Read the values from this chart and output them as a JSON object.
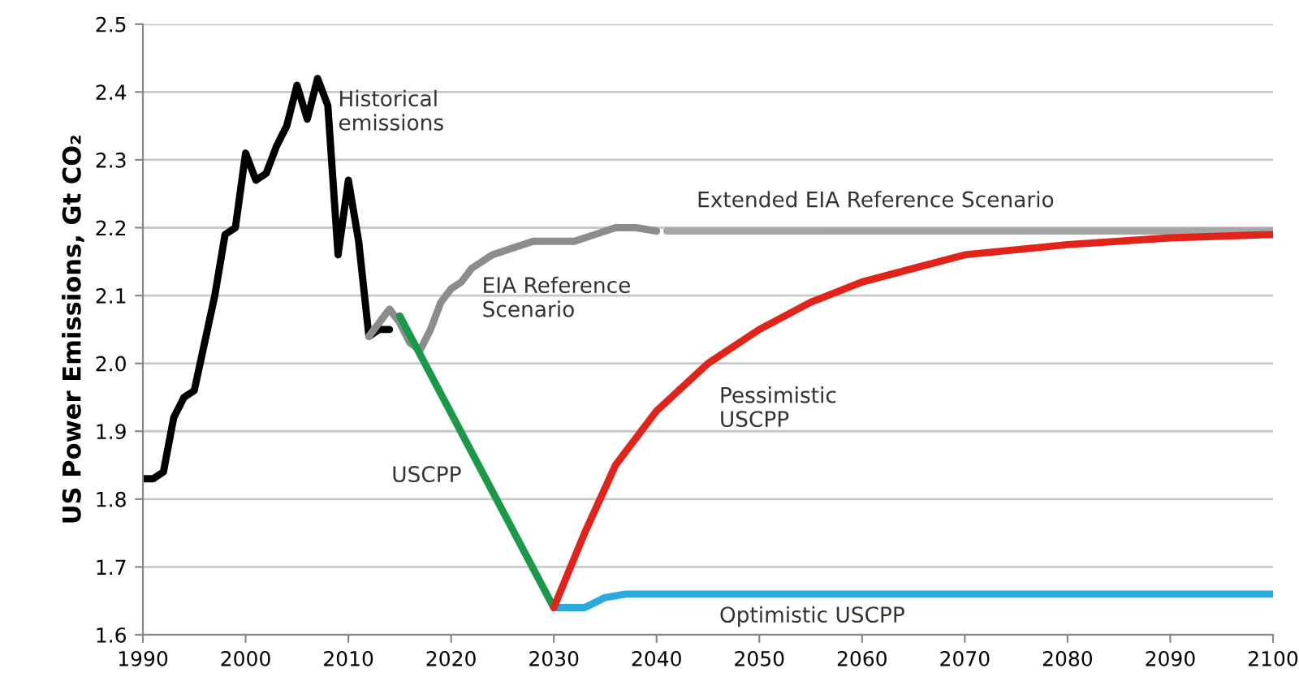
{
  "chart_data": {
    "type": "line",
    "ylabel": "US Power Emissions, Gt CO₂",
    "xlim": [
      1990,
      2100
    ],
    "xticks": [
      1990,
      2000,
      2010,
      2020,
      2030,
      2040,
      2050,
      2060,
      2070,
      2080,
      2090,
      2100
    ],
    "ylim": [
      1.6,
      2.5
    ],
    "yticks": [
      1.6,
      1.7,
      1.8,
      1.9,
      {
        "value": 2,
        "label": "2.0"
      },
      2.1,
      2.2,
      2.3,
      2.4,
      2.5
    ],
    "grid": "y",
    "legend": false,
    "series": [
      {
        "color": "#000000",
        "x": [
          1990,
          1991,
          1992,
          1993,
          1994,
          1995,
          1996,
          1997,
          1998,
          1999,
          2000,
          2001,
          2002,
          2003,
          2004,
          2005,
          2006,
          2007,
          2008,
          2009,
          2010,
          2011,
          2012,
          2013,
          2014
        ],
        "values": [
          1.83,
          1.83,
          1.84,
          1.92,
          1.95,
          1.96,
          2.03,
          2.1,
          2.19,
          2.2,
          2.31,
          2.27,
          2.28,
          2.32,
          2.35,
          2.41,
          2.36,
          2.42,
          2.38,
          2.16,
          2.27,
          2.18,
          2.04,
          2.05,
          2.05
        ]
      },
      {
        "color": "#8c8c8c",
        "x": [
          2012,
          2014,
          2015,
          2016,
          2017,
          2018,
          2019,
          2020,
          2021,
          2022,
          2024,
          2026,
          2028,
          2030,
          2032,
          2034,
          2036,
          2038,
          2040
        ],
        "values": [
          2.04,
          2.08,
          2.06,
          2.03,
          2.02,
          2.05,
          2.09,
          2.11,
          2.12,
          2.14,
          2.16,
          2.17,
          2.18,
          2.18,
          2.18,
          2.19,
          2.2,
          2.2,
          2.195
        ]
      },
      {
        "color": "#a6a6a6",
        "x": [
          2041,
          2100
        ],
        "values": [
          2.195,
          2.195
        ]
      },
      {
        "color": "#1a9a48",
        "x": [
          2015,
          2030
        ],
        "values": [
          2.07,
          1.64
        ]
      },
      {
        "color": "#2aa9de",
        "x": [
          2030,
          2033,
          2035,
          2037,
          2100
        ],
        "values": [
          1.64,
          1.64,
          1.655,
          1.66,
          1.66
        ]
      },
      {
        "color": "#e2231a",
        "x": [
          2030,
          2033,
          2036,
          2040,
          2045,
          2050,
          2055,
          2060,
          2065,
          2070,
          2080,
          2090,
          2100
        ],
        "values": [
          1.64,
          1.75,
          1.85,
          1.93,
          2.0,
          2.05,
          2.09,
          2.12,
          2.14,
          2.16,
          2.175,
          2.185,
          2.19
        ]
      }
    ],
    "annotations": [
      {
        "text": "Historical\nemissions",
        "x": 2009,
        "y": 2.37
      },
      "EIA Reference\nScenario",
      "Extended EIA Reference Scenario",
      "USCPP",
      "Pessimistic\nUSCPP",
      "Optimistic USCPP"
    ]
  }
}
